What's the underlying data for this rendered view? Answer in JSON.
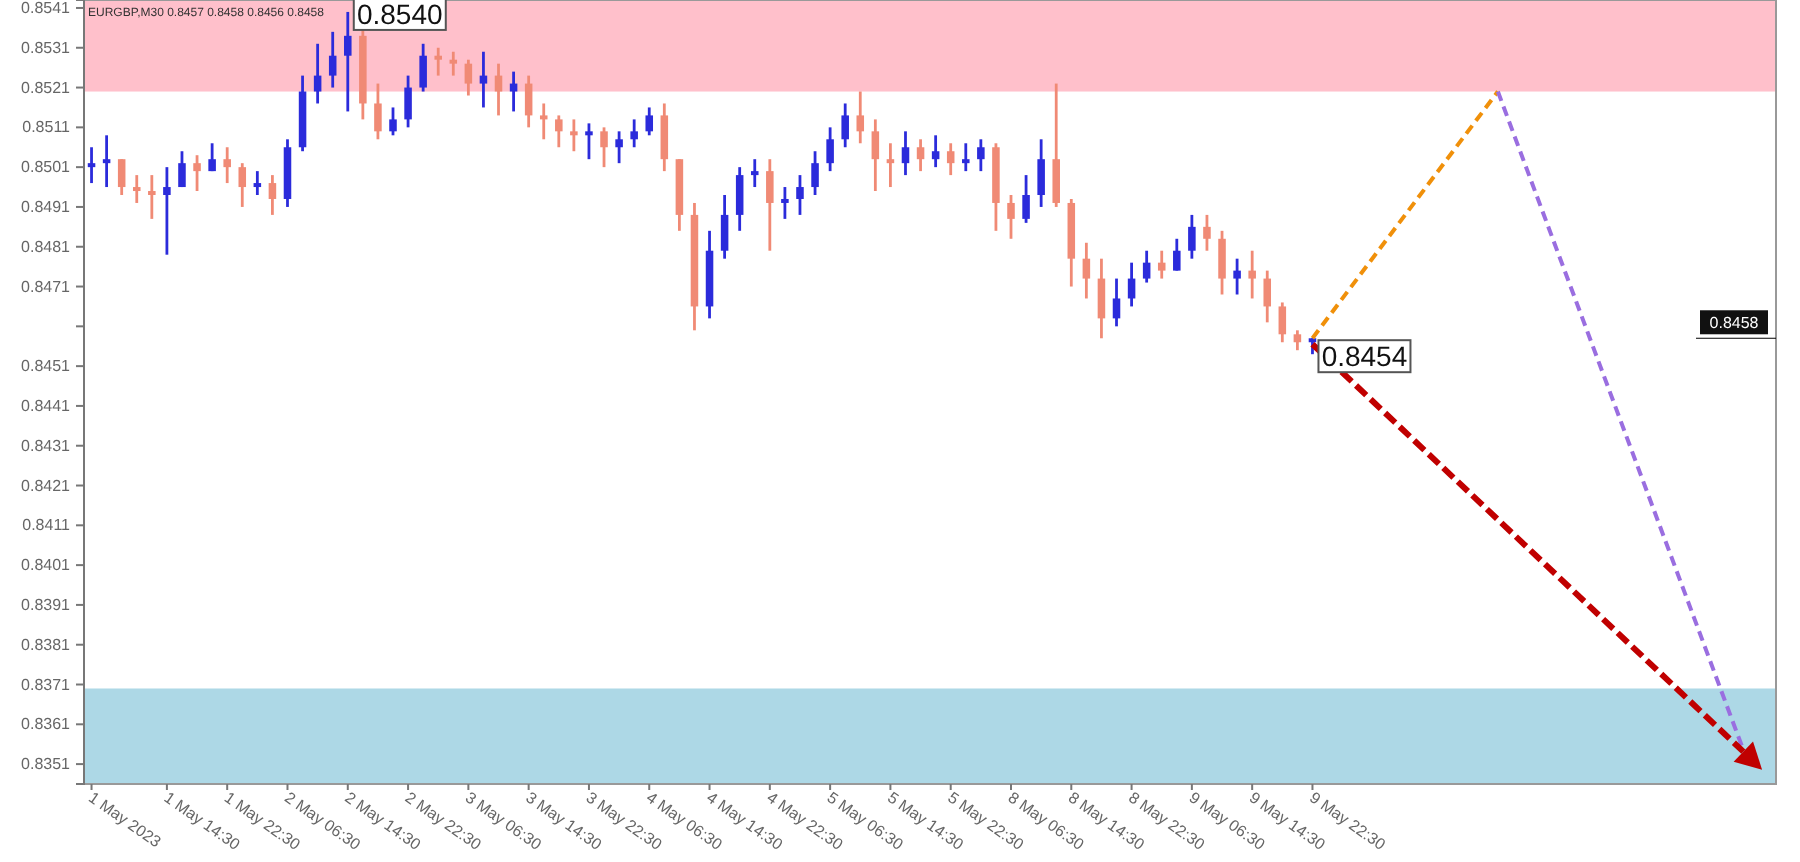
{
  "chart_data": {
    "type": "candlestick",
    "categories": [
      "1 May 2023",
      null,
      null,
      null,
      null,
      "1 May 14:30",
      null,
      null,
      null,
      "1 May 22:30",
      null,
      null,
      null,
      "2 May 06:30",
      null,
      null,
      null,
      "2 May 14:30",
      null,
      null,
      null,
      "2 May 22:30",
      null,
      null,
      null,
      "3 May 06:30",
      null,
      null,
      null,
      "3 May 14:30",
      null,
      null,
      null,
      "3 May 22:30",
      null,
      null,
      null,
      "4 May 06:30",
      null,
      null,
      null,
      "4 May 14:30",
      null,
      null,
      null,
      "4 May 22:30",
      null,
      null,
      null,
      "5 May 06:30",
      null,
      null,
      null,
      "5 May 14:30",
      null,
      null,
      null,
      "5 May 22:30",
      null,
      null,
      null,
      "8 May 06:30",
      null,
      null,
      null,
      "8 May 14:30",
      null,
      null,
      null,
      "8 May 22:30",
      null,
      null,
      null,
      "9 May 06:30",
      null,
      null,
      null,
      "9 May 14:30",
      null,
      null,
      null,
      "9 May 22:30"
    ],
    "ohlc": [
      [
        0.8501,
        0.8506,
        0.8497,
        0.8502
      ],
      [
        0.8502,
        0.8509,
        0.8496,
        0.8503
      ],
      [
        0.8503,
        0.8503,
        0.8494,
        0.8496
      ],
      [
        0.8496,
        0.8499,
        0.8492,
        0.8495
      ],
      [
        0.8495,
        0.8499,
        0.8488,
        0.8494
      ],
      [
        0.8494,
        0.8501,
        0.8479,
        0.8496
      ],
      [
        0.8496,
        0.8505,
        0.8496,
        0.8502
      ],
      [
        0.8502,
        0.8504,
        0.8495,
        0.85
      ],
      [
        0.85,
        0.8507,
        0.85,
        0.8503
      ],
      [
        0.8503,
        0.8506,
        0.8497,
        0.8501
      ],
      [
        0.8501,
        0.8502,
        0.8491,
        0.8496
      ],
      [
        0.8496,
        0.85,
        0.8494,
        0.8497
      ],
      [
        0.8497,
        0.8499,
        0.8489,
        0.8493
      ],
      [
        0.8493,
        0.8508,
        0.8491,
        0.8506
      ],
      [
        0.8506,
        0.8524,
        0.8505,
        0.852
      ],
      [
        0.852,
        0.8532,
        0.8517,
        0.8524
      ],
      [
        0.8524,
        0.8535,
        0.8521,
        0.8529
      ],
      [
        0.8529,
        0.854,
        0.8515,
        0.8534
      ],
      [
        0.8534,
        0.8536,
        0.8513,
        0.8517
      ],
      [
        0.8517,
        0.8522,
        0.8508,
        0.851
      ],
      [
        0.851,
        0.8516,
        0.8509,
        0.8513
      ],
      [
        0.8513,
        0.8524,
        0.8511,
        0.8521
      ],
      [
        0.8521,
        0.8532,
        0.852,
        0.8529
      ],
      [
        0.8529,
        0.8531,
        0.8524,
        0.8528
      ],
      [
        0.8528,
        0.853,
        0.8524,
        0.8527
      ],
      [
        0.8527,
        0.8528,
        0.8519,
        0.8522
      ],
      [
        0.8522,
        0.853,
        0.8516,
        0.8524
      ],
      [
        0.8524,
        0.8527,
        0.8514,
        0.852
      ],
      [
        0.852,
        0.8525,
        0.8515,
        0.8522
      ],
      [
        0.8522,
        0.8524,
        0.8511,
        0.8514
      ],
      [
        0.8514,
        0.8517,
        0.8508,
        0.8513
      ],
      [
        0.8513,
        0.8514,
        0.8506,
        0.851
      ],
      [
        0.851,
        0.8513,
        0.8505,
        0.8509
      ],
      [
        0.8509,
        0.8512,
        0.8503,
        0.851
      ],
      [
        0.851,
        0.8511,
        0.8501,
        0.8506
      ],
      [
        0.8506,
        0.851,
        0.8502,
        0.8508
      ],
      [
        0.8508,
        0.8513,
        0.8506,
        0.851
      ],
      [
        0.851,
        0.8516,
        0.8509,
        0.8514
      ],
      [
        0.8514,
        0.8517,
        0.85,
        0.8503
      ],
      [
        0.8503,
        0.8503,
        0.8485,
        0.8489
      ],
      [
        0.8489,
        0.8492,
        0.846,
        0.8466
      ],
      [
        0.8466,
        0.8485,
        0.8463,
        0.848
      ],
      [
        0.848,
        0.8494,
        0.8478,
        0.8489
      ],
      [
        0.8489,
        0.8501,
        0.8485,
        0.8499
      ],
      [
        0.8499,
        0.8503,
        0.8496,
        0.85
      ],
      [
        0.85,
        0.8503,
        0.848,
        0.8492
      ],
      [
        0.8492,
        0.8496,
        0.8488,
        0.8493
      ],
      [
        0.8493,
        0.8499,
        0.8489,
        0.8496
      ],
      [
        0.8496,
        0.8505,
        0.8494,
        0.8502
      ],
      [
        0.8502,
        0.8511,
        0.85,
        0.8508
      ],
      [
        0.8508,
        0.8517,
        0.8506,
        0.8514
      ],
      [
        0.8514,
        0.852,
        0.8507,
        0.851
      ],
      [
        0.851,
        0.8513,
        0.8495,
        0.8503
      ],
      [
        0.8503,
        0.8507,
        0.8496,
        0.8502
      ],
      [
        0.8502,
        0.851,
        0.8499,
        0.8506
      ],
      [
        0.8506,
        0.8508,
        0.85,
        0.8503
      ],
      [
        0.8503,
        0.8509,
        0.8501,
        0.8505
      ],
      [
        0.8505,
        0.8507,
        0.8499,
        0.8502
      ],
      [
        0.8502,
        0.8507,
        0.85,
        0.8503
      ],
      [
        0.8503,
        0.8508,
        0.85,
        0.8506
      ],
      [
        0.8506,
        0.8507,
        0.8485,
        0.8492
      ],
      [
        0.8492,
        0.8494,
        0.8483,
        0.8488
      ],
      [
        0.8488,
        0.8499,
        0.8487,
        0.8494
      ],
      [
        0.8494,
        0.8508,
        0.8491,
        0.8503
      ],
      [
        0.8503,
        0.8522,
        0.8491,
        0.8492
      ],
      [
        0.8492,
        0.8493,
        0.8471,
        0.8478
      ],
      [
        0.8478,
        0.8482,
        0.8468,
        0.8473
      ],
      [
        0.8473,
        0.8478,
        0.8458,
        0.8463
      ],
      [
        0.8463,
        0.8473,
        0.8461,
        0.8468
      ],
      [
        0.8468,
        0.8477,
        0.8466,
        0.8473
      ],
      [
        0.8473,
        0.848,
        0.8472,
        0.8477
      ],
      [
        0.8477,
        0.848,
        0.8473,
        0.8475
      ],
      [
        0.8475,
        0.8483,
        0.8475,
        0.848
      ],
      [
        0.848,
        0.8489,
        0.8478,
        0.8486
      ],
      [
        0.8486,
        0.8489,
        0.848,
        0.8483
      ],
      [
        0.8483,
        0.8485,
        0.8469,
        0.8473
      ],
      [
        0.8473,
        0.8478,
        0.8469,
        0.8475
      ],
      [
        0.8475,
        0.848,
        0.8468,
        0.8473
      ],
      [
        0.8473,
        0.8475,
        0.8462,
        0.8466
      ],
      [
        0.8466,
        0.8467,
        0.8457,
        0.8459
      ],
      [
        0.8459,
        0.846,
        0.8455,
        0.8457
      ],
      [
        0.8457,
        0.8458,
        0.8454,
        0.8458
      ]
    ],
    "ylim": [
      0.8346,
      0.8543
    ],
    "yticks": [
      0.8541,
      0.8531,
      0.8521,
      0.8511,
      0.8501,
      0.8491,
      0.8481,
      0.8471,
      {
        "value": 0.8461,
        "label": null
      },
      0.8451,
      0.8441,
      0.8431,
      0.8421,
      0.8411,
      0.8401,
      0.8391,
      0.8381,
      0.8371,
      0.8361,
      0.8351
    ],
    "bands": [
      {
        "axis": "y",
        "from": 0.852,
        "to": 0.8543,
        "color": "#ffc0cb"
      },
      {
        "axis": "y",
        "from": 0.8346,
        "to": 0.837,
        "color": "#add8e6"
      }
    ],
    "ref_lines": [
      {
        "axis": "y",
        "value": 0.8458,
        "label": "0.8458"
      }
    ],
    "annotations": [
      "EURGBP,M30 0.8457 0.8458 0.8456 0.8458",
      {
        "text": "0.8540",
        "x": "2 May 14:30",
        "y": 0.854
      },
      {
        "text": "0.8454",
        "x": "9 May 22:30",
        "y": 0.8454
      }
    ]
  }
}
